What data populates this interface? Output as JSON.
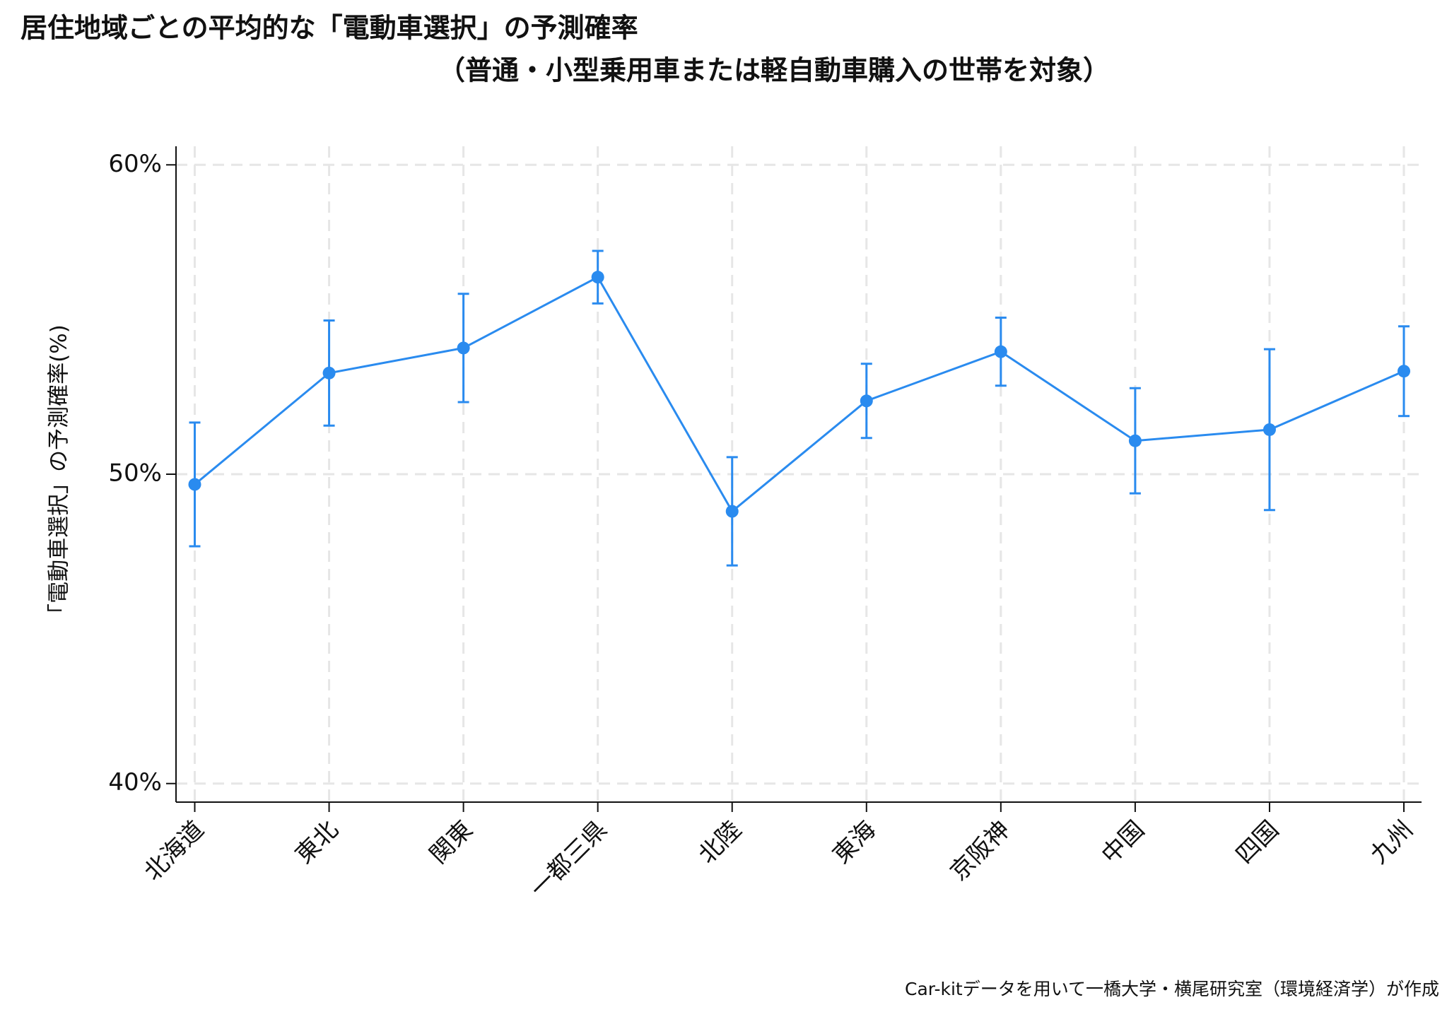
{
  "chart_data": {
    "type": "line",
    "title": "居住地域ごとの平均的な「電動車選択」の予測確率",
    "subtitle": "（普通・小型乗用車または軽自動車購入の世帯を対象）",
    "y_label": "「電動車選択」の予測確率(%)",
    "footnote": "Car-kitデータを用いて一橋大学・横尾研究室（環境経済学）が作成",
    "categories": [
      "北海道",
      "東北",
      "関東",
      "一都三県",
      "北陸",
      "東海",
      "京阪神",
      "中国",
      "四国",
      "九州"
    ],
    "series": [
      {
        "color": "#2a8bef",
        "values": [
          49.67,
          53.27,
          54.08,
          56.37,
          48.8,
          52.37,
          53.96,
          51.08,
          51.44,
          53.33
        ],
        "errors": [
          2.0,
          1.7,
          1.75,
          0.85,
          1.75,
          1.2,
          1.1,
          1.7,
          2.6,
          1.45
        ]
      }
    ],
    "ylim": [
      39.4,
      60.6
    ],
    "yticks": [
      {
        "value": 40,
        "label": "40%"
      },
      {
        "value": 50,
        "label": "50%"
      },
      {
        "value": 60,
        "label": "60%"
      }
    ],
    "grid": true
  }
}
